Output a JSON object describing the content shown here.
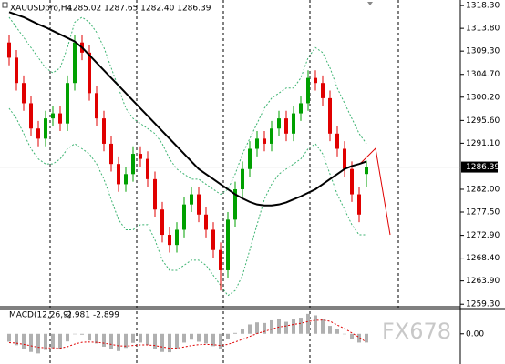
{
  "chart_data": {
    "type": "candlestick",
    "title": "XAUUSDpro,H4",
    "ohlc_text": "1285.02 1287.65 1282.40 1286.39",
    "up_color": "#00a000",
    "down_color": "#e00000",
    "open": [
      1311,
      1308,
      1303,
      1299,
      1294,
      1292,
      1296,
      1297,
      1295,
      1303,
      1311,
      1309,
      1301,
      1296,
      1291,
      1287,
      1283,
      1285,
      1289,
      1288,
      1284,
      1278,
      1273,
      1271,
      1274,
      1279,
      1281,
      1277,
      1274,
      1270,
      1266,
      1276,
      1282,
      1286,
      1290,
      1292,
      1291,
      1294,
      1296,
      1293,
      1297,
      1299,
      1304,
      1303,
      1300,
      1293,
      1290,
      1286,
      1281,
      1285.02
    ],
    "high": [
      1312.5,
      1309.5,
      1304.5,
      1300.5,
      1295.5,
      1297.5,
      1298.5,
      1298.5,
      1304.5,
      1312.5,
      1312.5,
      1310.5,
      1302.5,
      1297.5,
      1292.5,
      1288.5,
      1286.5,
      1290.5,
      1290.5,
      1289.5,
      1285.5,
      1279.5,
      1274.5,
      1275.5,
      1280.5,
      1282.5,
      1282.5,
      1278.5,
      1275.5,
      1271.5,
      1277.5,
      1283.5,
      1287.5,
      1291.5,
      1293.5,
      1293.5,
      1295.5,
      1297.5,
      1297.5,
      1298.5,
      1300.5,
      1305.5,
      1305.5,
      1304.5,
      1301.5,
      1294.5,
      1291.5,
      1287.5,
      1282.5,
      1287.65
    ],
    "low": [
      1306.5,
      1301.5,
      1297.5,
      1292.5,
      1290.5,
      1290.5,
      1294.5,
      1293.5,
      1293.5,
      1301.5,
      1307.5,
      1299.5,
      1294.5,
      1289.5,
      1285.5,
      1281.5,
      1281.5,
      1283.5,
      1286.5,
      1282.5,
      1276.5,
      1271.5,
      1269.5,
      1269.5,
      1272.5,
      1277.5,
      1275.5,
      1272.5,
      1268.5,
      1262,
      1264.5,
      1274.5,
      1280.5,
      1284.5,
      1288.5,
      1289.5,
      1289.5,
      1292.5,
      1291.5,
      1291.5,
      1295.5,
      1297.5,
      1301.5,
      1298.5,
      1291.5,
      1288.5,
      1284.5,
      1279.5,
      1275.5,
      1282.4
    ],
    "close": [
      1308,
      1303,
      1299,
      1294,
      1292,
      1296,
      1297,
      1295,
      1303,
      1311,
      1309,
      1301,
      1296,
      1291,
      1287,
      1283,
      1285,
      1289,
      1288,
      1284,
      1278,
      1273,
      1271,
      1274,
      1279,
      1281,
      1277,
      1274,
      1270,
      1266,
      1276,
      1282,
      1286,
      1290,
      1292,
      1291,
      1294,
      1296,
      1293,
      1297,
      1299,
      1304,
      1303,
      1300,
      1293,
      1290,
      1286,
      1281,
      1277,
      1286.39
    ],
    "ma": {
      "color": "#000000",
      "values": [
        1317,
        1316.5,
        1316,
        1315.3,
        1314.6,
        1314,
        1313.3,
        1312.6,
        1311.9,
        1311.2,
        1310,
        1308.5,
        1307,
        1305.5,
        1304,
        1302.5,
        1301,
        1299.5,
        1298,
        1296.5,
        1295,
        1293.5,
        1292,
        1290.5,
        1289,
        1287.5,
        1286,
        1285,
        1284,
        1283,
        1282,
        1281,
        1280.2,
        1279.5,
        1279,
        1278.8,
        1278.8,
        1279,
        1279.4,
        1280,
        1280.6,
        1281.3,
        1282,
        1283,
        1284,
        1285,
        1286,
        1286.6,
        1287,
        1287.5
      ]
    },
    "bands": {
      "color": "#3cb371",
      "upper": [
        1316,
        1314,
        1312,
        1310,
        1308,
        1306,
        1305,
        1306,
        1310,
        1315,
        1316,
        1315,
        1313,
        1310,
        1306,
        1302,
        1298,
        1296,
        1295,
        1294,
        1293,
        1291,
        1288,
        1286,
        1285,
        1284,
        1284,
        1283,
        1282,
        1281,
        1282,
        1285,
        1289,
        1292,
        1295,
        1298,
        1300,
        1301,
        1302,
        1302,
        1304,
        1308,
        1310,
        1309,
        1306,
        1302,
        1299,
        1296,
        1293,
        1291
      ],
      "lower": [
        1298,
        1296,
        1293,
        1290,
        1288,
        1287,
        1287,
        1288,
        1290,
        1291,
        1290,
        1289,
        1287,
        1284,
        1280,
        1276,
        1274,
        1274,
        1275,
        1275,
        1272,
        1268,
        1266,
        1266,
        1267,
        1268,
        1268,
        1267,
        1265,
        1263,
        1261,
        1262,
        1265,
        1270,
        1275,
        1280,
        1283,
        1285,
        1286,
        1287,
        1288,
        1290,
        1291,
        1289,
        1285,
        1281,
        1278,
        1275,
        1273,
        1273
      ]
    },
    "ylim": [
      1258.8,
      1319.4
    ],
    "yticks": [
      {
        "value": 1318.3,
        "label": "1318.30"
      },
      {
        "value": 1313.8,
        "label": "1313.80"
      },
      {
        "value": 1309.3,
        "label": "1309.30"
      },
      {
        "value": 1304.7,
        "label": "1304.70"
      },
      {
        "value": 1300.2,
        "label": "1300.20"
      },
      {
        "value": 1295.6,
        "label": "1295.60"
      },
      {
        "value": 1291.1,
        "label": "1291.10"
      },
      {
        "value": 1282,
        "label": "1282.00"
      },
      {
        "value": 1277.5,
        "label": "1277.50"
      },
      {
        "value": 1272.9,
        "label": "1272.90"
      },
      {
        "value": 1268.4,
        "label": "1268.40"
      },
      {
        "value": 1263.9,
        "label": "1263.90"
      },
      {
        "value": 1259.3,
        "label": "1259.30"
      }
    ],
    "macd": {
      "title": "MACD(12,26,9)",
      "histogram": {
        "color": "#b0b0b0",
        "values": [
          -2.7,
          -3.9,
          -5.1,
          -6.2,
          -6.7,
          -5.5,
          -4.9,
          -5.3,
          -2.6,
          0,
          -0.3,
          -2.3,
          -3.3,
          -4.4,
          -5.1,
          -5.9,
          -4.8,
          -3.1,
          -3,
          -3.8,
          -5.1,
          -6.2,
          -6.3,
          -5,
          -3,
          -2,
          -2.7,
          -3.3,
          -4.2,
          -5.1,
          -1.8,
          0.3,
          1.7,
          3.2,
          3.9,
          3.7,
          4.6,
          5.1,
          4.1,
          5.1,
          5.5,
          6.8,
          6.3,
          5.1,
          2.7,
          1.5,
          0,
          -1.7,
          -3,
          -2.981
        ]
      },
      "signal": {
        "color": "#e00000",
        "values": [
          -3,
          -3.2,
          -3.6,
          -4.1,
          -4.6,
          -4.8,
          -4.8,
          -4.9,
          -4.4,
          -3.5,
          -2.9,
          -2.8,
          -2.9,
          -3.2,
          -3.6,
          -4.1,
          -4.2,
          -4,
          -3.8,
          -3.8,
          -4,
          -4.5,
          -4.9,
          -4.9,
          -4.5,
          -4,
          -3.7,
          -3.6,
          -3.7,
          -4,
          -3.6,
          -2.8,
          -1.9,
          -0.9,
          0.1,
          0.8,
          1.6,
          2.3,
          2.7,
          3.2,
          3.6,
          4.2,
          4.6,
          4.7,
          4.3,
          3,
          1.8,
          0.3,
          -1.2,
          -2.899
        ]
      },
      "ylim": [
        -10,
        8
      ],
      "yticks": [
        {
          "value": 0,
          "label": "0.00"
        }
      ]
    },
    "watermark": "FX678"
  }
}
